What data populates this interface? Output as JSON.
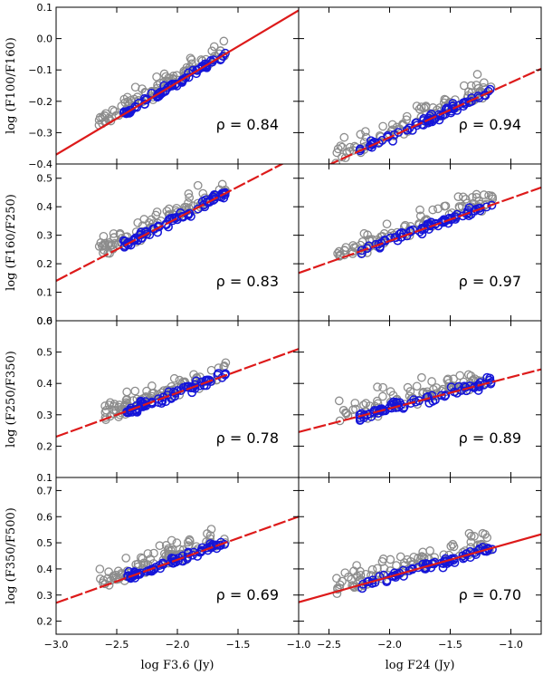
{
  "chart_data": {
    "type": "scatter",
    "figure": {
      "x_axes": [
        {
          "label": "log F3.6 (Jy)",
          "range": [
            -3.0,
            -1.0
          ],
          "ticks": [
            -3.0,
            -2.5,
            -2.0,
            -1.5
          ],
          "tick_labels": [
            "−3.0",
            "−2.5",
            "−2.0",
            "−1.5"
          ]
        },
        {
          "label": "log F24 (Jy)",
          "range": [
            -2.75,
            -0.75
          ],
          "ticks": [
            -2.5,
            -2.0,
            -1.5,
            -1.0
          ],
          "tick_labels": [
            "−2.5",
            "−2.0",
            "−1.5",
            "−1.0"
          ]
        }
      ],
      "corner_label": "−1.0",
      "colors": {
        "gray_points": "#8c8c8c",
        "blue_points": "#1515d8",
        "fit_line": "#dd1a1a"
      }
    },
    "rows": [
      {
        "ylabel": "log (F100/F160)",
        "ylim": [
          -0.4,
          0.1
        ],
        "yticks": [
          -0.3,
          -0.2,
          -0.1,
          0.0,
          0.1
        ],
        "ytick_labels": [
          "−0.3",
          "−0.2",
          "−0.1",
          "0.0",
          "0.1"
        ],
        "bottom_label": "−0.4",
        "panels": [
          {
            "rho": "ρ = 0.84",
            "fit": {
              "slope": 0.23,
              "intercept": 0.32,
              "dashed": false
            }
          },
          {
            "rho": "ρ = 0.94",
            "fit": {
              "slope": 0.175,
              "intercept": 0.035,
              "dashed": true
            }
          }
        ]
      },
      {
        "ylabel": "log (F160/F250)",
        "ylim": [
          0.0,
          0.55
        ],
        "yticks": [
          0.1,
          0.2,
          0.3,
          0.4,
          0.5
        ],
        "ytick_labels": [
          "0.1",
          "0.2",
          "0.3",
          "0.4",
          "0.5"
        ],
        "bottom_label": "0.0",
        "panels": [
          {
            "rho": "ρ = 0.83",
            "fit": {
              "slope": 0.22,
              "intercept": 0.8,
              "dashed": true
            }
          },
          {
            "rho": "ρ = 0.97",
            "fit": {
              "slope": 0.15,
              "intercept": 0.58,
              "dashed": true
            }
          }
        ]
      },
      {
        "ylabel": "log (F250/F350)",
        "ylim": [
          0.1,
          0.6
        ],
        "yticks": [
          0.2,
          0.3,
          0.4,
          0.5,
          0.6
        ],
        "ytick_labels": [
          "0.2",
          "0.3",
          "0.4",
          "0.5",
          "0.6"
        ],
        "bottom_label": "0.1",
        "panels": [
          {
            "rho": "ρ = 0.78",
            "fit": {
              "slope": 0.14,
              "intercept": 0.65,
              "dashed": true
            }
          },
          {
            "rho": "ρ = 0.89",
            "fit": {
              "slope": 0.1,
              "intercept": 0.52,
              "dashed": true
            }
          }
        ]
      },
      {
        "ylabel": "log (F350/F500)",
        "ylim": [
          0.15,
          0.75
        ],
        "yticks": [
          0.2,
          0.3,
          0.4,
          0.5,
          0.6,
          0.7
        ],
        "ytick_labels": [
          "0.2",
          "0.3",
          "0.4",
          "0.5",
          "0.6",
          "0.7"
        ],
        "bottom_label": "",
        "panels": [
          {
            "rho": "ρ = 0.69",
            "fit": {
              "slope": 0.165,
              "intercept": 0.765,
              "dashed": true
            }
          },
          {
            "rho": "ρ = 0.70",
            "fit": {
              "slope": 0.13,
              "intercept": 0.63,
              "dashed": false
            }
          }
        ]
      }
    ]
  }
}
